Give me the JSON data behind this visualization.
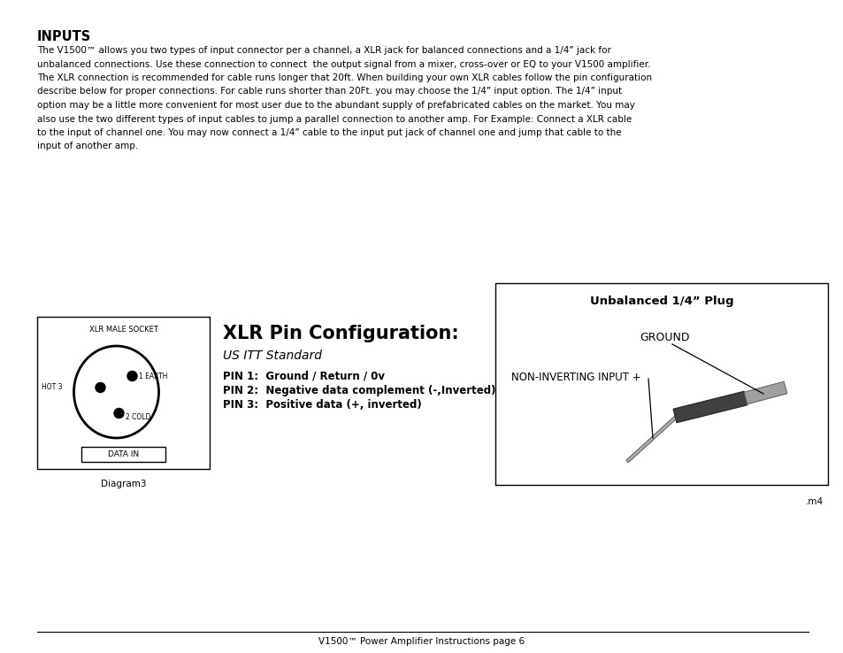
{
  "bg_color": "#ffffff",
  "page_width": 9.54,
  "page_height": 7.38,
  "title": "INPUTS",
  "body_lines": [
    "The V1500™ allows you two types of input connector per a channel, a XLR jack for balanced connections and a 1/4” jack for",
    "unbalanced connections. Use these connection to connect  the output signal from a mixer, cross-over or EQ to your V1500 amplifier.",
    "The XLR connection is recommended for cable runs longer that 20ft. When building your own XLR cables follow the pin configuration",
    "describe below for proper connections. For cable runs shorter than 20Ft. you may choose the 1/4” input option. The 1/4” input",
    "option may be a little more convenient for most user due to the abundant supply of prefabricated cables on the market. You may",
    "also use the two different types of input cables to jump a parallel connection to another amp. For Example: Connect a XLR cable",
    "to the input of channel one. You may now connect a 1/4” cable to the input put jack of channel one and jump that cable to the",
    "input of another amp."
  ],
  "xlr_title": "XLR Pin Configuration:",
  "xlr_subtitle": "US ITT Standard",
  "xlr_pin1": "PIN 1:  Ground / Return / 0v",
  "xlr_pin2": "PIN 2:  Negative data complement (-,Inverted)",
  "xlr_pin3": "PIN 3:  Positive data (+, inverted)",
  "xlr_socket_label": "XLR MALE SOCKET",
  "xlr_hot3": "HOT 3",
  "xlr_earth": "1 EARTH",
  "xlr_cold": "2 COLD",
  "xlr_datain": "DATA IN",
  "diagram3_label": "Diagram3",
  "unbalanced_title": "Unbalanced 1/4” Plug",
  "unbalanced_ground": "GROUND",
  "unbalanced_noninverting": "NON-INVERTING INPUT +",
  "m4_label": ".m4",
  "footer": "V1500™ Power Amplifier Instructions page 6",
  "text_color": "#000000",
  "border_color": "#000000"
}
